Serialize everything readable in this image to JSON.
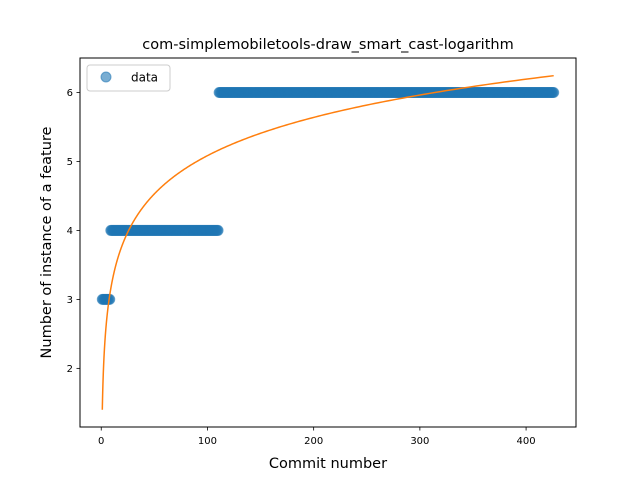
{
  "chart_data": {
    "type": "scatter",
    "title": "com-simplemobiletools-draw_smart_cast-logarithm",
    "xlabel": "Commit number",
    "ylabel": "Number of instance of a feature",
    "xlim": [
      -20,
      447
    ],
    "ylim": [
      1.15,
      6.5
    ],
    "xticks": [
      0,
      100,
      200,
      300,
      400
    ],
    "yticks": [
      2,
      3,
      4,
      5,
      6
    ],
    "grid": false,
    "legend": {
      "placement": "upper-left",
      "entries": [
        {
          "label": "data",
          "marker": "circle",
          "color": "#1f77b4"
        }
      ]
    },
    "series": [
      {
        "name": "data",
        "kind": "scatter",
        "color": "#1f77b4",
        "alpha": 0.6,
        "segments": [
          {
            "x_from": 1,
            "x_to": 8,
            "y": 3
          },
          {
            "x_from": 9,
            "x_to": 110,
            "y": 4
          },
          {
            "x_from": 111,
            "x_to": 426,
            "y": 6
          }
        ]
      },
      {
        "kind": "line",
        "color": "#ff7f0e",
        "model": "logarithmic",
        "coefficients": {
          "a": 0.8,
          "b": 1.4
        },
        "x_range": [
          1,
          426
        ]
      }
    ]
  }
}
